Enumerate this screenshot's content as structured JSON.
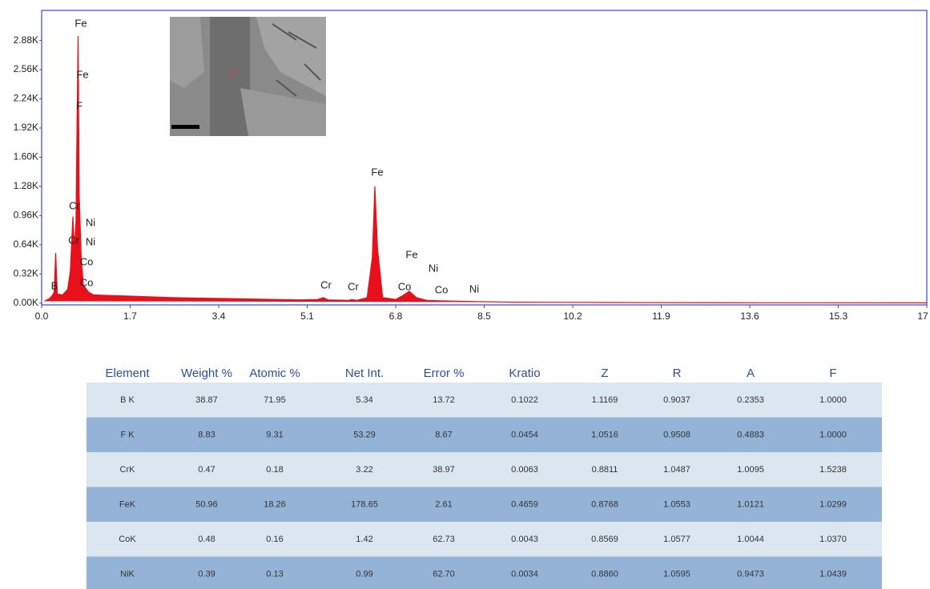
{
  "chart_data": {
    "type": "line",
    "x": [
      0.05,
      0.15,
      0.2,
      0.24,
      0.27,
      0.3,
      0.4,
      0.5,
      0.55,
      0.6,
      0.63,
      0.66,
      0.68,
      0.7,
      0.72,
      0.76,
      0.8,
      0.9,
      1.0,
      1.5,
      2.0,
      2.5,
      3.0,
      3.5,
      4.0,
      4.5,
      5.0,
      5.3,
      5.41,
      5.5,
      5.9,
      5.95,
      6.05,
      6.25,
      6.35,
      6.4,
      6.45,
      6.55,
      6.8,
      6.93,
      7.06,
      7.2,
      7.4,
      7.65,
      8.0,
      8.5,
      9.0,
      10,
      12,
      14,
      17
    ],
    "series": [
      {
        "color": "#e8101a",
        "values": [
          0.02,
          0.05,
          0.08,
          0.12,
          0.55,
          0.1,
          0.09,
          0.15,
          0.35,
          0.95,
          0.6,
          0.9,
          2.0,
          2.93,
          1.2,
          0.5,
          0.2,
          0.12,
          0.09,
          0.08,
          0.07,
          0.06,
          0.055,
          0.05,
          0.045,
          0.04,
          0.035,
          0.04,
          0.06,
          0.035,
          0.03,
          0.04,
          0.03,
          0.06,
          0.5,
          1.28,
          0.6,
          0.06,
          0.04,
          0.08,
          0.13,
          0.06,
          0.03,
          0.025,
          0.02,
          0.015,
          0.01,
          0.008,
          0.005,
          0.004,
          0.003
        ]
      }
    ],
    "xlim": [
      0,
      17
    ],
    "xticks": [
      {
        "value": 0,
        "label": "0.0"
      },
      1.7,
      3.4,
      5.1,
      6.8,
      8.5,
      10.2,
      11.9,
      13.6,
      15.3,
      17
    ],
    "ylim": [
      -0.02,
      3.21
    ],
    "yticks": [
      {
        "value": 0,
        "label": "0.00K"
      },
      {
        "value": 0.32,
        "label": "0.32K"
      },
      {
        "value": 0.64,
        "label": "0.64K"
      },
      {
        "value": 0.96,
        "label": "0.96K"
      },
      {
        "value": 1.28,
        "label": "1.28K"
      },
      {
        "value": 1.6,
        "label": "1.60K"
      },
      {
        "value": 1.92,
        "label": "1.92K"
      },
      {
        "value": 2.24,
        "label": "2.24K"
      },
      {
        "value": 2.56,
        "label": "2.56K"
      },
      {
        "value": 2.88,
        "label": "2.88K"
      }
    ],
    "annotations": [
      "Fe",
      "Fe",
      "F",
      "Cr",
      "Ni",
      "Cr",
      "Ni",
      "Co",
      "Co",
      "B",
      "Cr",
      "Cr",
      "Fe",
      "Co",
      "Fe",
      "Ni",
      "Co",
      "Ni"
    ]
  },
  "table": {
    "header": [
      "Element",
      "Weight %",
      "Atomic %",
      "Net Int.",
      "Error %",
      "Kratio",
      "Z",
      "R",
      "A",
      "F"
    ],
    "rows": [
      [
        "B K",
        "38.87",
        "71.95",
        "5.34",
        "13.72",
        "0.1022",
        "1.1169",
        "0.9037",
        "0.2353",
        "1.0000"
      ],
      [
        "F K",
        "8.83",
        "9.31",
        "53.29",
        "8.67",
        "0.0454",
        "1.0516",
        "0.9508",
        "0.4883",
        "1.0000"
      ],
      [
        "CrK",
        "0.47",
        "0.18",
        "3.22",
        "38.97",
        "0.0063",
        "0.8811",
        "1.0487",
        "1.0095",
        "1.5238"
      ],
      [
        "FeK",
        "50.96",
        "18.26",
        "178.65",
        "2.61",
        "0.4659",
        "0.8768",
        "1.0553",
        "1.0121",
        "1.0299"
      ],
      [
        "CoK",
        "0.48",
        "0.16",
        "1.42",
        "62.73",
        "0.0043",
        "0.8569",
        "1.0577",
        "1.0044",
        "1.0370"
      ],
      [
        "NiK",
        "0.39",
        "0.13",
        "0.99",
        "62.70",
        "0.0034",
        "0.8860",
        "1.0595",
        "0.9473",
        "1.0439"
      ]
    ]
  }
}
